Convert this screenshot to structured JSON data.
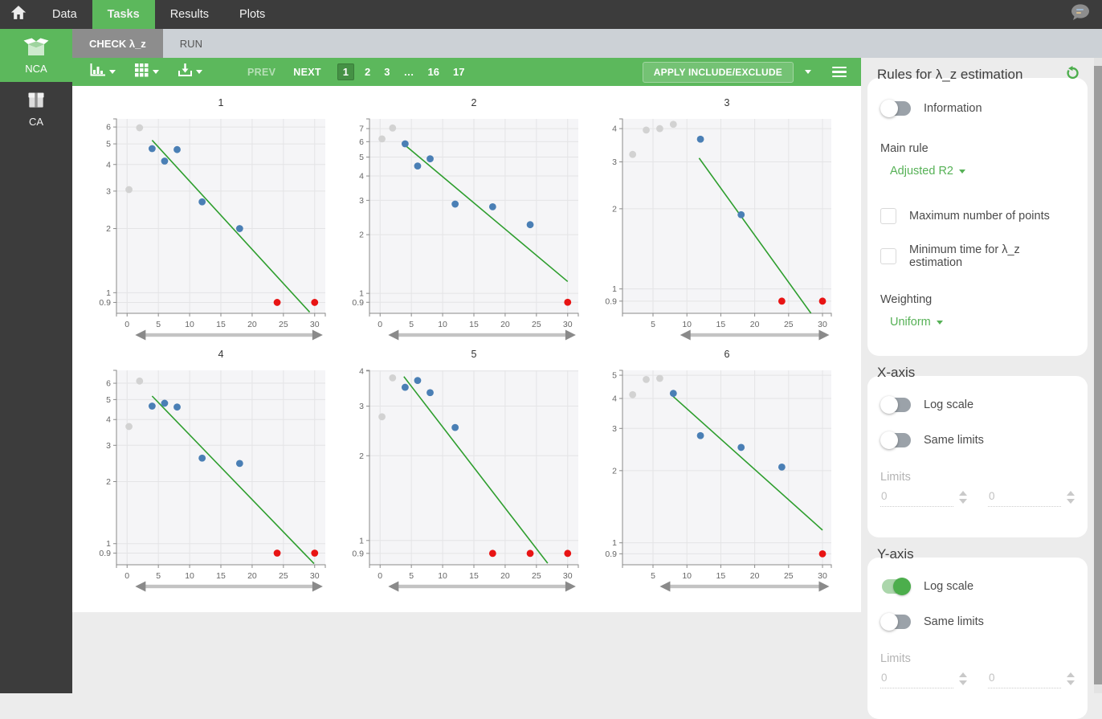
{
  "topnav": {
    "items": [
      {
        "label": "Data"
      },
      {
        "label": "Tasks"
      },
      {
        "label": "Results"
      },
      {
        "label": "Plots"
      }
    ]
  },
  "task_tabs": [
    {
      "label": "CHECK λ_z"
    },
    {
      "label": "RUN"
    }
  ],
  "sidebar": {
    "items": [
      {
        "label": "NCA",
        "icon": "open-box-icon"
      },
      {
        "label": "CA",
        "icon": "closed-box-icon"
      }
    ]
  },
  "toolbar": {
    "icons": [
      "chart-type-icon",
      "grid-layout-icon",
      "export-icon"
    ],
    "prev_label": "PREV",
    "next_label": "NEXT",
    "pages": [
      "1",
      "2",
      "3",
      "…",
      "16",
      "17"
    ],
    "active_page": "1",
    "apply_label": "APPLY INCLUDE/EXCLUDE"
  },
  "panel": {
    "rules": {
      "title": "Rules for λ_z estimation",
      "information_label": "Information",
      "information_on": false,
      "main_rule_label": "Main rule",
      "main_rule_value": "Adjusted R2",
      "checkboxes": [
        "Maximum number of points",
        "Minimum time for λ_z estimation"
      ],
      "weighting_label": "Weighting",
      "weighting_value": "Uniform"
    },
    "x_axis": {
      "title": "X-axis",
      "log_scale_label": "Log scale",
      "log_scale_on": false,
      "same_limits_label": "Same limits",
      "same_limits_on": false,
      "limits_label": "Limits",
      "limit_min": "0",
      "limit_max": "0"
    },
    "y_axis": {
      "title": "Y-axis",
      "log_scale_label": "Log scale",
      "log_scale_on": true,
      "same_limits_label": "Same limits",
      "same_limits_on": false,
      "limits_label": "Limits",
      "limit_min": "0",
      "limit_max": "0"
    }
  },
  "colors": {
    "accent_green": "#5cb85c",
    "topbar_dark": "#3c3c3c",
    "plot_bg": "#f5f5f7",
    "grid": "#e4e4e6",
    "axis": "#8a8a8a",
    "tick_text": "#666666",
    "included_point": "#4a7fb5",
    "excluded_point": "#e81414",
    "ignored_point": "#d2d2d2",
    "regression_line": "#2e9e2e"
  },
  "chart_data": [
    {
      "type": "scatter",
      "title": "1",
      "x_scale": "linear",
      "y_scale": "log",
      "xlim": [
        -1.7,
        31.7
      ],
      "ylim": [
        0.8,
        6.55
      ],
      "xticks": [
        0,
        5,
        10,
        15,
        20,
        25,
        30
      ],
      "yticks": [
        6,
        5,
        4,
        3,
        2,
        1,
        0.9
      ],
      "series": [
        {
          "name": "ignored",
          "color": "#d2d2d2",
          "points": [
            [
              0.3,
              3.05
            ],
            [
              2,
              5.95
            ]
          ]
        },
        {
          "name": "included",
          "color": "#4a7fb5",
          "points": [
            [
              4,
              4.75
            ],
            [
              6,
              4.15
            ],
            [
              8,
              4.7
            ],
            [
              12,
              2.67
            ],
            [
              18,
              2.0
            ]
          ]
        },
        {
          "name": "excluded",
          "color": "#e81414",
          "points": [
            [
              24,
              0.9
            ],
            [
              30,
              0.9
            ]
          ]
        }
      ],
      "regression_line": {
        "color": "#2e9e2e",
        "from": [
          4,
          5.2
        ],
        "to": [
          29.2,
          0.81
        ]
      },
      "range_arrow": [
        1.3,
        31.3
      ]
    },
    {
      "type": "scatter",
      "title": "2",
      "x_scale": "linear",
      "y_scale": "log",
      "xlim": [
        -1.7,
        31.7
      ],
      "ylim": [
        0.79,
        7.85
      ],
      "xticks": [
        0,
        5,
        10,
        15,
        20,
        25,
        30
      ],
      "yticks": [
        7,
        6,
        5,
        4,
        3,
        2,
        1,
        0.9
      ],
      "series": [
        {
          "name": "ignored",
          "color": "#d2d2d2",
          "points": [
            [
              0.3,
              6.2
            ],
            [
              2,
              7.05
            ]
          ]
        },
        {
          "name": "included",
          "color": "#4a7fb5",
          "points": [
            [
              4,
              5.85
            ],
            [
              6,
              4.5
            ],
            [
              8,
              4.9
            ],
            [
              12,
              2.87
            ],
            [
              18,
              2.78
            ],
            [
              24,
              2.25
            ]
          ]
        },
        {
          "name": "excluded",
          "color": "#e81414",
          "points": [
            [
              30,
              0.9
            ]
          ]
        }
      ],
      "regression_line": {
        "color": "#2e9e2e",
        "from": [
          4,
          5.75
        ],
        "to": [
          30,
          1.15
        ]
      },
      "range_arrow": [
        1.3,
        31.3
      ]
    },
    {
      "type": "scatter",
      "title": "3",
      "x_scale": "linear",
      "y_scale": "log",
      "xlim": [
        0.5,
        31.3
      ],
      "ylim": [
        0.81,
        4.35
      ],
      "xticks": [
        5,
        10,
        15,
        20,
        25,
        30
      ],
      "yticks": [
        4,
        3,
        2,
        1,
        0.9
      ],
      "series": [
        {
          "name": "ignored",
          "color": "#d2d2d2",
          "points": [
            [
              2,
              3.2
            ],
            [
              4,
              3.95
            ],
            [
              6,
              4.0
            ],
            [
              8,
              4.15
            ]
          ]
        },
        {
          "name": "included",
          "color": "#4a7fb5",
          "points": [
            [
              12,
              3.65
            ],
            [
              18,
              1.9
            ]
          ]
        },
        {
          "name": "excluded",
          "color": "#e81414",
          "points": [
            [
              24,
              0.9
            ],
            [
              30,
              0.9
            ]
          ]
        }
      ],
      "regression_line": {
        "color": "#2e9e2e",
        "from": [
          11.8,
          3.1
        ],
        "to": [
          28.3,
          0.81
        ]
      },
      "range_arrow": [
        9.0,
        31.0
      ]
    },
    {
      "type": "scatter",
      "title": "4",
      "x_scale": "linear",
      "y_scale": "log",
      "xlim": [
        -1.7,
        31.7
      ],
      "ylim": [
        0.79,
        6.93
      ],
      "xticks": [
        0,
        5,
        10,
        15,
        20,
        25,
        30
      ],
      "yticks": [
        6,
        5,
        4,
        3,
        2,
        1,
        0.9
      ],
      "series": [
        {
          "name": "ignored",
          "color": "#d2d2d2",
          "points": [
            [
              0.3,
              3.7
            ],
            [
              2,
              6.15
            ]
          ]
        },
        {
          "name": "included",
          "color": "#4a7fb5",
          "points": [
            [
              4,
              4.65
            ],
            [
              6,
              4.8
            ],
            [
              8,
              4.6
            ],
            [
              12,
              2.6
            ],
            [
              18,
              2.45
            ]
          ]
        },
        {
          "name": "excluded",
          "color": "#e81414",
          "points": [
            [
              24,
              0.9
            ],
            [
              30,
              0.9
            ]
          ]
        }
      ],
      "regression_line": {
        "color": "#2e9e2e",
        "from": [
          4,
          5.2
        ],
        "to": [
          29.9,
          0.8
        ]
      },
      "range_arrow": [
        1.3,
        31.3
      ]
    },
    {
      "type": "scatter",
      "title": "5",
      "x_scale": "linear",
      "y_scale": "log",
      "xlim": [
        -1.7,
        31.7
      ],
      "ylim": [
        0.82,
        4.02
      ],
      "xticks": [
        0,
        5,
        10,
        15,
        20,
        25,
        30
      ],
      "yticks": [
        4,
        3,
        2,
        1,
        0.9
      ],
      "series": [
        {
          "name": "ignored",
          "color": "#d2d2d2",
          "points": [
            [
              0.3,
              2.75
            ],
            [
              2,
              3.78
            ]
          ]
        },
        {
          "name": "included",
          "color": "#4a7fb5",
          "points": [
            [
              4,
              3.5
            ],
            [
              6,
              3.7
            ],
            [
              8,
              3.35
            ],
            [
              12,
              2.52
            ]
          ]
        },
        {
          "name": "excluded",
          "color": "#e81414",
          "points": [
            [
              18,
              0.9
            ],
            [
              24,
              0.9
            ],
            [
              30,
              0.9
            ]
          ]
        }
      ],
      "regression_line": {
        "color": "#2e9e2e",
        "from": [
          3.8,
          3.82
        ],
        "to": [
          26.8,
          0.83
        ]
      },
      "range_arrow": [
        1.3,
        31.3
      ]
    },
    {
      "type": "scatter",
      "title": "6",
      "x_scale": "linear",
      "y_scale": "log",
      "xlim": [
        0.5,
        31.3
      ],
      "ylim": [
        0.81,
        5.24
      ],
      "xticks": [
        5,
        10,
        15,
        20,
        25,
        30
      ],
      "yticks": [
        5,
        4,
        3,
        2,
        1,
        0.9
      ],
      "series": [
        {
          "name": "ignored",
          "color": "#d2d2d2",
          "points": [
            [
              2,
              4.15
            ],
            [
              4,
              4.8
            ],
            [
              6,
              4.85
            ]
          ]
        },
        {
          "name": "included",
          "color": "#4a7fb5",
          "points": [
            [
              8,
              4.2
            ],
            [
              12,
              2.8
            ],
            [
              18,
              2.5
            ],
            [
              24,
              2.07
            ]
          ]
        },
        {
          "name": "excluded",
          "color": "#e81414",
          "points": [
            [
              30,
              0.9
            ]
          ]
        }
      ],
      "regression_line": {
        "color": "#2e9e2e",
        "from": [
          7.8,
          4.12
        ],
        "to": [
          30,
          1.13
        ]
      },
      "range_arrow": [
        6.0,
        31.0
      ]
    }
  ]
}
